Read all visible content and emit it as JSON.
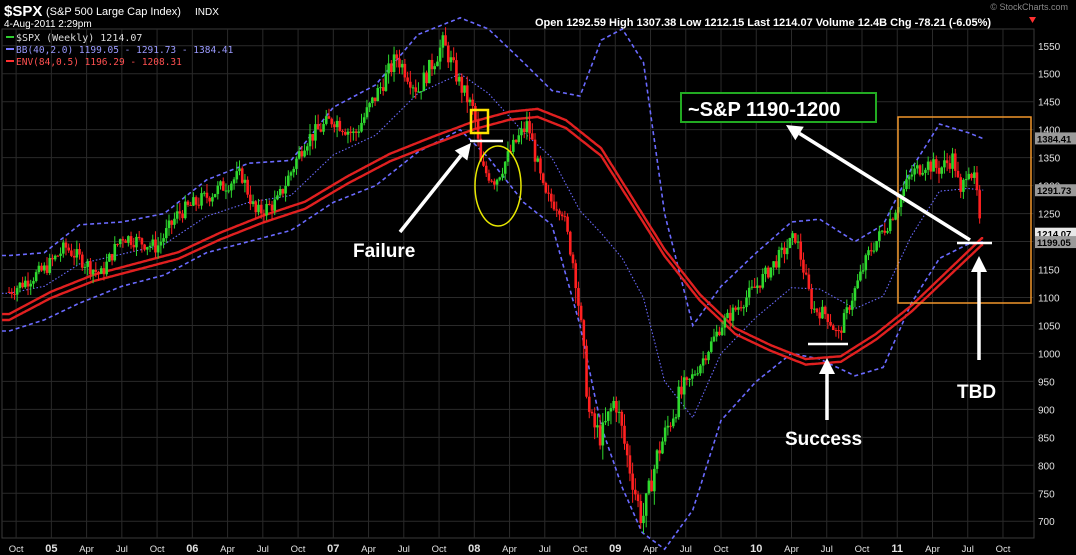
{
  "header": {
    "symbol": "$SPX",
    "name": "(S&P 500 Large Cap Index)",
    "exchange": "INDX",
    "date": "4-Aug-2011 2:29pm",
    "open_label": "Open",
    "open": "1292.59",
    "high_label": "High",
    "high": "1307.38",
    "low_label": "Low",
    "low": "1212.15",
    "last_label": "Last",
    "last": "1214.07",
    "volume_label": "Volume",
    "volume": "12.4B",
    "chg_label": "Chg",
    "chg": "-78.21 (-6.05%)",
    "watermark": "© StockCharts.com"
  },
  "legend": {
    "price": "$SPX (Weekly) 1214.07",
    "bb": "BB(40,2.0) 1199.05 - 1291.73 - 1384.41",
    "env": "ENV(84,0.5) 1196.29 - 1208.31"
  },
  "chart_data": {
    "type": "line",
    "x_tick_labels": [
      "Oct",
      "05",
      "Apr",
      "Jul",
      "Oct",
      "06",
      "Apr",
      "Jul",
      "Oct",
      "07",
      "Apr",
      "Jul",
      "Oct",
      "08",
      "Apr",
      "Jul",
      "Oct",
      "09",
      "Apr",
      "Jul",
      "Oct",
      "10",
      "Apr",
      "Jul",
      "Oct",
      "11",
      "Apr",
      "Jul",
      "Oct"
    ],
    "y_ticks": [
      700,
      750,
      800,
      850,
      900,
      950,
      1000,
      1050,
      1100,
      1150,
      1200,
      1250,
      1300,
      1350,
      1400,
      1450,
      1500,
      1550
    ],
    "ylim": [
      670,
      1580
    ],
    "xlim": [
      2004.65,
      2011.97
    ],
    "price_anchors": [
      [
        2004.7,
        1110
      ],
      [
        2004.95,
        1150
      ],
      [
        2005.1,
        1190
      ],
      [
        2005.25,
        1160
      ],
      [
        2005.35,
        1140
      ],
      [
        2005.5,
        1210
      ],
      [
        2005.75,
        1190
      ],
      [
        2005.9,
        1250
      ],
      [
        2006.1,
        1280
      ],
      [
        2006.35,
        1320
      ],
      [
        2006.45,
        1250
      ],
      [
        2006.6,
        1270
      ],
      [
        2006.8,
        1380
      ],
      [
        2007.0,
        1420
      ],
      [
        2007.15,
        1390
      ],
      [
        2007.45,
        1530
      ],
      [
        2007.6,
        1470
      ],
      [
        2007.78,
        1555
      ],
      [
        2007.9,
        1480
      ],
      [
        2008.0,
        1430
      ],
      [
        2008.05,
        1330
      ],
      [
        2008.15,
        1310
      ],
      [
        2008.3,
        1380
      ],
      [
        2008.38,
        1410
      ],
      [
        2008.5,
        1280
      ],
      [
        2008.62,
        1260
      ],
      [
        2008.72,
        1140
      ],
      [
        2008.82,
        880
      ],
      [
        2008.9,
        850
      ],
      [
        2009.0,
        920
      ],
      [
        2009.08,
        820
      ],
      [
        2009.19,
        700
      ],
      [
        2009.3,
        820
      ],
      [
        2009.45,
        920
      ],
      [
        2009.6,
        980
      ],
      [
        2009.75,
        1050
      ],
      [
        2010.0,
        1120
      ],
      [
        2010.28,
        1210
      ],
      [
        2010.4,
        1080
      ],
      [
        2010.5,
        1070
      ],
      [
        2010.58,
        1030
      ],
      [
        2010.68,
        1100
      ],
      [
        2010.8,
        1180
      ],
      [
        2010.95,
        1240
      ],
      [
        2011.1,
        1320
      ],
      [
        2011.2,
        1340
      ],
      [
        2011.3,
        1330
      ],
      [
        2011.4,
        1350
      ],
      [
        2011.45,
        1280
      ],
      [
        2011.5,
        1340
      ],
      [
        2011.56,
        1300
      ],
      [
        2011.59,
        1214
      ]
    ],
    "bb_upper_anchors": [
      [
        2004.7,
        1175
      ],
      [
        2004.95,
        1180
      ],
      [
        2005.2,
        1230
      ],
      [
        2005.5,
        1235
      ],
      [
        2005.8,
        1250
      ],
      [
        2006.1,
        1310
      ],
      [
        2006.4,
        1340
      ],
      [
        2006.7,
        1345
      ],
      [
        2007.0,
        1440
      ],
      [
        2007.3,
        1480
      ],
      [
        2007.6,
        1570
      ],
      [
        2007.9,
        1600
      ],
      [
        2008.1,
        1580
      ],
      [
        2008.35,
        1520
      ],
      [
        2008.55,
        1470
      ],
      [
        2008.75,
        1460
      ],
      [
        2008.9,
        1560
      ],
      [
        2009.05,
        1580
      ],
      [
        2009.2,
        1520
      ],
      [
        2009.35,
        1250
      ],
      [
        2009.55,
        1050
      ],
      [
        2009.75,
        1120
      ],
      [
        2010.0,
        1180
      ],
      [
        2010.25,
        1235
      ],
      [
        2010.45,
        1240
      ],
      [
        2010.7,
        1200
      ],
      [
        2010.9,
        1230
      ],
      [
        2011.1,
        1330
      ],
      [
        2011.3,
        1410
      ],
      [
        2011.5,
        1395
      ],
      [
        2011.6,
        1385
      ]
    ],
    "bb_lower_anchors": [
      [
        2004.7,
        1040
      ],
      [
        2004.95,
        1060
      ],
      [
        2005.2,
        1090
      ],
      [
        2005.5,
        1120
      ],
      [
        2005.8,
        1140
      ],
      [
        2006.1,
        1180
      ],
      [
        2006.4,
        1200
      ],
      [
        2006.7,
        1220
      ],
      [
        2007.0,
        1270
      ],
      [
        2007.3,
        1300
      ],
      [
        2007.6,
        1360
      ],
      [
        2007.9,
        1400
      ],
      [
        2008.1,
        1350
      ],
      [
        2008.35,
        1270
      ],
      [
        2008.55,
        1230
      ],
      [
        2008.75,
        1050
      ],
      [
        2008.9,
        870
      ],
      [
        2009.05,
        760
      ],
      [
        2009.19,
        680
      ],
      [
        2009.35,
        650
      ],
      [
        2009.55,
        720
      ],
      [
        2009.75,
        880
      ],
      [
        2010.0,
        950
      ],
      [
        2010.25,
        1000
      ],
      [
        2010.45,
        990
      ],
      [
        2010.7,
        960
      ],
      [
        2010.9,
        975
      ],
      [
        2011.1,
        1090
      ],
      [
        2011.3,
        1170
      ],
      [
        2011.5,
        1195
      ],
      [
        2011.6,
        1199
      ]
    ],
    "env_anchors": [
      [
        2004.7,
        1065
      ],
      [
        2005.0,
        1105
      ],
      [
        2005.3,
        1135
      ],
      [
        2005.6,
        1155
      ],
      [
        2005.9,
        1175
      ],
      [
        2006.2,
        1210
      ],
      [
        2006.5,
        1240
      ],
      [
        2006.8,
        1265
      ],
      [
        2007.1,
        1310
      ],
      [
        2007.4,
        1350
      ],
      [
        2007.7,
        1380
      ],
      [
        2008.0,
        1408
      ],
      [
        2008.25,
        1425
      ],
      [
        2008.45,
        1430
      ],
      [
        2008.65,
        1410
      ],
      [
        2008.9,
        1360
      ],
      [
        2009.1,
        1280
      ],
      [
        2009.35,
        1180
      ],
      [
        2009.6,
        1100
      ],
      [
        2009.85,
        1040
      ],
      [
        2010.1,
        1010
      ],
      [
        2010.35,
        985
      ],
      [
        2010.6,
        990
      ],
      [
        2010.85,
        1030
      ],
      [
        2011.1,
        1080
      ],
      [
        2011.35,
        1140
      ],
      [
        2011.6,
        1200
      ]
    ],
    "series": [
      {
        "name": "$SPX (Weekly) 1214.07",
        "color": "#33cc33"
      },
      {
        "name": "BB(40,2.0) 1199.05 - 1291.73 - 1384.41",
        "color": "#7a7aff"
      },
      {
        "name": "ENV(84,0.5) 1196.29 - 1208.31",
        "color": "#ff2a2a"
      }
    ],
    "axis_tags": [
      {
        "value": 1384.41,
        "label": "1384.41"
      },
      {
        "value": 1291.73,
        "label": "1291.73"
      },
      {
        "value": 1214.07,
        "label": "1214.07"
      },
      {
        "value": 1199.05,
        "label": "1199.05"
      }
    ],
    "annotations": {
      "sp_range": "~S&P 1190-1200",
      "failure": "Failure",
      "success": "Success",
      "tbd": "TBD"
    },
    "grid": true
  }
}
